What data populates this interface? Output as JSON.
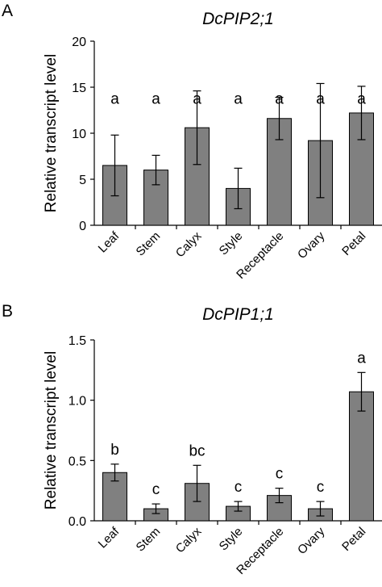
{
  "chart_data": [
    {
      "panel": "A",
      "type": "bar",
      "title": "DcPIP2;1",
      "ylabel": "Relative transcript level",
      "xlabel": "",
      "categories": [
        "Leaf",
        "Stem",
        "Calyx",
        "Style",
        "Receptacle",
        "Ovary",
        "Petal"
      ],
      "values": [
        6.5,
        6.0,
        10.6,
        4.0,
        11.6,
        9.2,
        12.2
      ],
      "errors": [
        3.3,
        1.6,
        4.0,
        2.2,
        2.3,
        6.2,
        2.9
      ],
      "labels": [
        "a",
        "a",
        "a",
        "a",
        "a",
        "a",
        "a"
      ],
      "ylim": [
        0,
        20
      ],
      "yticks": [
        "0",
        "5",
        "10",
        "15",
        "20"
      ],
      "bar_color": "#808080",
      "grid": false
    },
    {
      "panel": "B",
      "type": "bar",
      "title": "DcPIP1;1",
      "ylabel": "Relative transcript level",
      "xlabel": "",
      "categories": [
        "Leaf",
        "Stem",
        "Calyx",
        "Style",
        "Receptacle",
        "Ovary",
        "Petal"
      ],
      "values": [
        0.4,
        0.1,
        0.31,
        0.12,
        0.21,
        0.1,
        1.07
      ],
      "errors": [
        0.07,
        0.04,
        0.15,
        0.04,
        0.06,
        0.06,
        0.16
      ],
      "labels": [
        "b",
        "c",
        "bc",
        "c",
        "c",
        "c",
        "a"
      ],
      "ylim": [
        0,
        1.5
      ],
      "yticks": [
        "0.0",
        "0.5",
        "1.0",
        "1.5"
      ],
      "bar_color": "#808080",
      "grid": false
    }
  ]
}
